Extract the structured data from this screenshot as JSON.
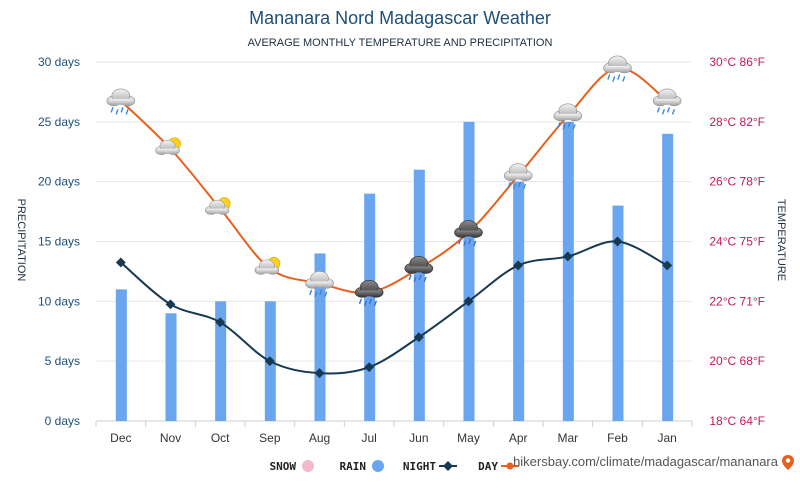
{
  "chart_data": {
    "type": "bar",
    "title": "Mananara Nord Madagascar Weather",
    "subtitle": "AVERAGE MONTHLY TEMPERATURE AND PRECIPITATION",
    "categories": [
      "Jan",
      "Feb",
      "Mar",
      "Apr",
      "May",
      "Jun",
      "Jul",
      "Aug",
      "Sep",
      "Oct",
      "Nov",
      "Dec"
    ],
    "left_axis": {
      "label": "PRECIPITATION",
      "ticks": [
        "0 days",
        "5 days",
        "10 days",
        "15 days",
        "20 days",
        "25 days",
        "30 days"
      ],
      "range": [
        0,
        30
      ]
    },
    "right_axis": {
      "label": "TEMPERATURE",
      "ticks": [
        "18°C 64°F",
        "20°C 68°F",
        "22°C 71°F",
        "24°C 75°F",
        "26°C 78°F",
        "28°C 82°F",
        "30°C 86°F"
      ],
      "range": [
        18,
        30
      ]
    },
    "series": [
      {
        "name": "DAY",
        "kind": "line",
        "axis": "right",
        "color": "#e8601c",
        "values": [
          28.7,
          29.8,
          28.2,
          26.2,
          24.3,
          23.1,
          22.3,
          22.6,
          23.1,
          25.1,
          27.1,
          28.7
        ]
      },
      {
        "name": "NIGHT",
        "kind": "line",
        "axis": "right",
        "color": "#173a52",
        "values": [
          23.2,
          24.0,
          23.5,
          23.2,
          22.0,
          20.8,
          19.8,
          19.6,
          20.0,
          21.3,
          21.9,
          23.3
        ]
      },
      {
        "name": "RAIN",
        "kind": "bar",
        "axis": "left",
        "color": "#6aa6ef",
        "values": [
          24,
          18,
          25,
          20,
          25,
          21,
          19,
          14,
          10,
          10,
          9,
          11
        ]
      },
      {
        "name": "SNOW",
        "kind": "bar",
        "axis": "left",
        "color": "#f5b8cc",
        "values": [
          0,
          0,
          0,
          0,
          0,
          0,
          0,
          0,
          0,
          0,
          0,
          0
        ]
      }
    ],
    "weather_icons": [
      "rain-cloud-icon",
      "rain-cloud-icon",
      "rain-cloud-icon",
      "rain-cloud-icon",
      "thunder-cloud-icon",
      "thunder-cloud-icon",
      "thunder-cloud-icon",
      "rain-cloud-icon",
      "sun-cloud-icon",
      "sun-cloud-icon",
      "sun-cloud-icon",
      "rain-cloud-icon"
    ],
    "grid": true,
    "legend_position": "bottom"
  },
  "source": {
    "text": "hikersbay.com/climate/madagascar/mananara",
    "icon": "location-pin-icon"
  }
}
